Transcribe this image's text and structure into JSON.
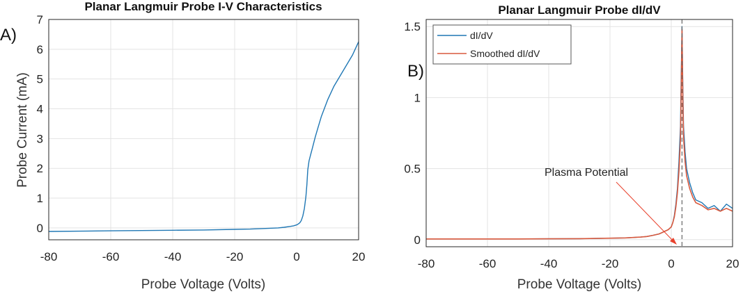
{
  "chart_data": [
    {
      "type": "line",
      "panel_label": "A)",
      "title": "Planar Langmuir Probe I-V Characteristics",
      "xlabel": "Probe Voltage (Volts)",
      "ylabel": "Probe Current (mA)",
      "xlim": [
        -80,
        20
      ],
      "ylim": [
        -0.4,
        7
      ],
      "xticks": [
        -80,
        -60,
        -40,
        -20,
        0,
        20
      ],
      "yticks": [
        0,
        1,
        2,
        3,
        4,
        5,
        6,
        7
      ],
      "grid": true,
      "series": [
        {
          "name": "I-V",
          "color": "#1f77b4",
          "x": [
            -80,
            -70,
            -60,
            -50,
            -40,
            -30,
            -20,
            -15,
            -10,
            -6,
            -4,
            -2,
            -1,
            0,
            0.5,
            1,
            1.5,
            2,
            2.5,
            3,
            3.3,
            3.6,
            4,
            4.5,
            5,
            6,
            7,
            8,
            10,
            12,
            14,
            16,
            18,
            20
          ],
          "y": [
            -0.12,
            -0.11,
            -0.1,
            -0.09,
            -0.08,
            -0.07,
            -0.05,
            -0.04,
            -0.02,
            0.0,
            0.02,
            0.05,
            0.07,
            0.1,
            0.13,
            0.17,
            0.25,
            0.4,
            0.65,
            1.05,
            1.45,
            1.95,
            2.25,
            2.45,
            2.65,
            3.05,
            3.4,
            3.75,
            4.3,
            4.75,
            5.1,
            5.45,
            5.8,
            6.25
          ]
        }
      ]
    },
    {
      "type": "line",
      "panel_label": "B)",
      "title": "Planar Langmuir Probe dI/dV",
      "xlabel": "Probe Voltage (Volts)",
      "ylabel": "",
      "xlim": [
        -80,
        20
      ],
      "ylim": [
        -0.05,
        1.55
      ],
      "xticks": [
        -80,
        -60,
        -40,
        -20,
        0,
        20
      ],
      "yticks": [
        0,
        0.5,
        1,
        1.5
      ],
      "ytick_labels": [
        "0",
        "0.5",
        "1",
        "1.5"
      ],
      "grid": true,
      "legend": "top-left",
      "legend_entries": [
        "dI/dV",
        "Smoothed dI/dV"
      ],
      "annotation": {
        "text": "Plasma Potential",
        "points_to_x": 2,
        "points_to_y": -0.03
      },
      "vline_x": 3.5,
      "series": [
        {
          "name": "dI/dV",
          "color": "#1f77b4",
          "x": [
            -80,
            -70,
            -60,
            -50,
            -40,
            -30,
            -20,
            -15,
            -10,
            -8,
            -6,
            -4,
            -3,
            -2,
            -1,
            0,
            0.5,
            1,
            1.5,
            2,
            2.5,
            3,
            3.2,
            3.5,
            3.8,
            4,
            4.5,
            5,
            6,
            7,
            8,
            10,
            12,
            14,
            16,
            18,
            20
          ],
          "y": [
            0.005,
            0.005,
            0.005,
            0.005,
            0.006,
            0.007,
            0.01,
            0.012,
            0.018,
            0.022,
            0.03,
            0.04,
            0.05,
            0.06,
            0.07,
            0.09,
            0.12,
            0.17,
            0.25,
            0.36,
            0.55,
            0.8,
            1.1,
            1.5,
            1.05,
            0.8,
            0.62,
            0.5,
            0.4,
            0.33,
            0.28,
            0.26,
            0.22,
            0.24,
            0.2,
            0.25,
            0.22
          ]
        },
        {
          "name": "Smoothed dI/dV",
          "color": "#d9593d",
          "x": [
            -80,
            -70,
            -60,
            -50,
            -40,
            -30,
            -20,
            -15,
            -10,
            -8,
            -6,
            -4,
            -3,
            -2,
            -1,
            0,
            0.5,
            1,
            1.5,
            2,
            2.5,
            3,
            3.2,
            3.5,
            3.8,
            4,
            4.5,
            5,
            6,
            7,
            8,
            10,
            12,
            14,
            16,
            18,
            20
          ],
          "y": [
            0.005,
            0.005,
            0.005,
            0.005,
            0.006,
            0.007,
            0.01,
            0.012,
            0.018,
            0.022,
            0.03,
            0.04,
            0.05,
            0.06,
            0.07,
            0.09,
            0.12,
            0.16,
            0.23,
            0.33,
            0.48,
            0.7,
            1.0,
            1.48,
            0.95,
            0.72,
            0.55,
            0.45,
            0.36,
            0.3,
            0.26,
            0.24,
            0.21,
            0.22,
            0.2,
            0.22,
            0.2
          ]
        }
      ]
    }
  ]
}
